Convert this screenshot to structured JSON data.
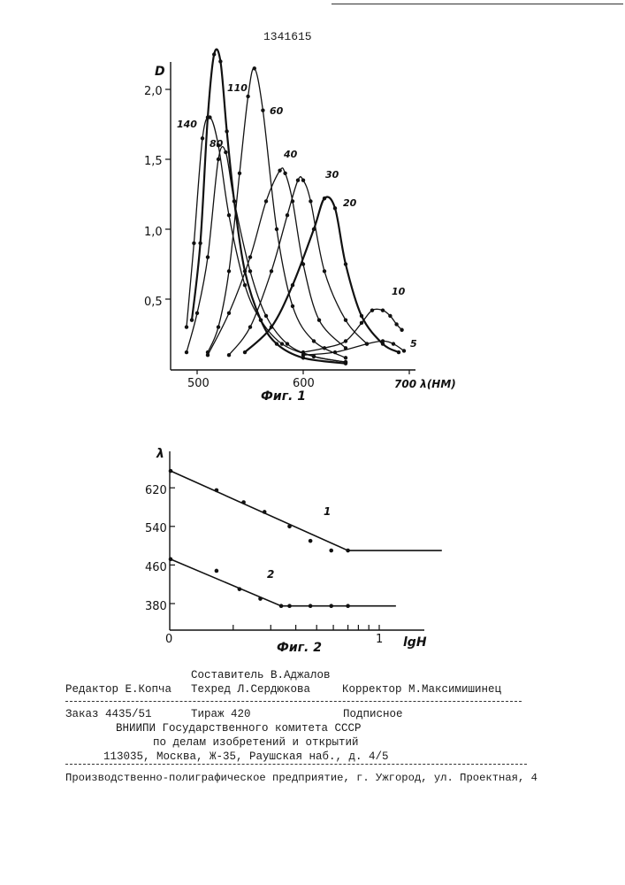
{
  "patent_number": "1341615",
  "fig1": {
    "caption": "Фиг. 1",
    "y_axis_label": "D",
    "x_axis_label": "700 λ(НМ)",
    "y_ticks": [
      "0,5",
      "1,0",
      "1,5",
      "2,0"
    ],
    "x_ticks": [
      "500",
      "600"
    ],
    "curve_labels": [
      "140",
      "110",
      "80",
      "60",
      "40",
      "30",
      "20",
      "10",
      "5"
    ]
  },
  "fig2": {
    "caption": "Фиг. 2",
    "y_axis_label": "λ",
    "x_axis_label": "lgH",
    "y_ticks": [
      "620",
      "540",
      "460",
      "380"
    ],
    "x_ticks": [
      "0",
      "1"
    ],
    "curve_labels": [
      "1",
      "2"
    ]
  },
  "credits": {
    "compiler": "Составитель В.Аджалов",
    "editor": "Редактор Е.Копча",
    "techred": "Техред Л.Сердюкова",
    "corrector": "Корректор М.Максимишинец"
  },
  "order": {
    "order_no": "Заказ 4435/51",
    "print_run": "Тираж 420",
    "subscription": "Подписное"
  },
  "publisher": {
    "line1": "ВНИИПИ Государственного комитета СССР",
    "line2": "по делам изобретений и открытий",
    "line3": "113035, Москва, Ж-35, Раушская наб., д. 4/5"
  },
  "printer": "Производственно-полиграфическое предприятие, г. Ужгород, ул. Проектная, 4",
  "chart_data": [
    {
      "type": "line",
      "title": "Фиг. 1",
      "xlabel": "λ(НМ)",
      "ylabel": "D",
      "xlim": [
        480,
        710
      ],
      "ylim": [
        0,
        2.2
      ],
      "x_ticks": [
        500,
        600,
        700
      ],
      "y_ticks": [
        0.5,
        1.0,
        1.5,
        2.0
      ],
      "series": [
        {
          "name": "140",
          "x": [
            490,
            497,
            505,
            512,
            520,
            530,
            545,
            560,
            580,
            610,
            640
          ],
          "y": [
            0.3,
            0.9,
            1.65,
            1.8,
            1.6,
            1.1,
            0.6,
            0.35,
            0.18,
            0.09,
            0.05
          ]
        },
        {
          "name": "110",
          "x": [
            495,
            503,
            510,
            516,
            522,
            528,
            535,
            545,
            560,
            575,
            600,
            640
          ],
          "y": [
            0.35,
            0.9,
            1.8,
            2.25,
            2.2,
            1.7,
            1.2,
            0.7,
            0.35,
            0.18,
            0.08,
            0.04
          ]
        },
        {
          "name": "80",
          "x": [
            490,
            500,
            510,
            520,
            527,
            535,
            550,
            565,
            585,
            610,
            640
          ],
          "y": [
            0.12,
            0.4,
            0.8,
            1.5,
            1.55,
            1.2,
            0.7,
            0.38,
            0.18,
            0.09,
            0.05
          ]
        },
        {
          "name": "60",
          "x": [
            510,
            520,
            530,
            540,
            548,
            554,
            562,
            575,
            590,
            610,
            640
          ],
          "y": [
            0.12,
            0.3,
            0.7,
            1.4,
            1.95,
            2.15,
            1.85,
            1.0,
            0.45,
            0.2,
            0.08
          ]
        },
        {
          "name": "40",
          "x": [
            510,
            530,
            550,
            565,
            578,
            583,
            590,
            600,
            615,
            640
          ],
          "y": [
            0.1,
            0.4,
            0.8,
            1.2,
            1.42,
            1.4,
            1.2,
            0.75,
            0.35,
            0.15
          ]
        },
        {
          "name": "30",
          "x": [
            530,
            550,
            570,
            585,
            595,
            600,
            607,
            620,
            640,
            660
          ],
          "y": [
            0.1,
            0.3,
            0.7,
            1.1,
            1.35,
            1.35,
            1.2,
            0.7,
            0.35,
            0.18
          ]
        },
        {
          "name": "20",
          "x": [
            545,
            570,
            590,
            610,
            620,
            630,
            640,
            655,
            675,
            690
          ],
          "y": [
            0.12,
            0.3,
            0.6,
            1.0,
            1.22,
            1.15,
            0.75,
            0.38,
            0.18,
            0.12
          ]
        },
        {
          "name": "10",
          "x": [
            600,
            620,
            640,
            655,
            665,
            675,
            682,
            688,
            693
          ],
          "y": [
            0.12,
            0.15,
            0.2,
            0.33,
            0.42,
            0.42,
            0.38,
            0.32,
            0.28
          ]
        },
        {
          "name": "5",
          "x": [
            600,
            630,
            660,
            675,
            685,
            695
          ],
          "y": [
            0.1,
            0.12,
            0.18,
            0.2,
            0.18,
            0.13
          ]
        }
      ]
    },
    {
      "type": "line",
      "title": "Фиг. 2",
      "xlabel": "lgH",
      "ylabel": "λ",
      "xlim": [
        0,
        1.4
      ],
      "ylim": [
        360,
        680
      ],
      "x_ticks": [
        0,
        1
      ],
      "y_ticks": [
        380,
        460,
        540,
        620
      ],
      "series": [
        {
          "name": "1",
          "x": [
            0,
            0.22,
            0.35,
            0.45,
            0.57,
            0.67,
            0.77,
            0.85,
            1.3
          ],
          "y": [
            655,
            615,
            590,
            570,
            540,
            510,
            490,
            490,
            490
          ]
        },
        {
          "name": "2",
          "x": [
            0,
            0.22,
            0.33,
            0.43,
            0.53,
            0.57,
            0.67,
            0.77,
            0.85
          ],
          "y": [
            472,
            448,
            410,
            390,
            375,
            375,
            375,
            375,
            375
          ]
        }
      ]
    }
  ]
}
